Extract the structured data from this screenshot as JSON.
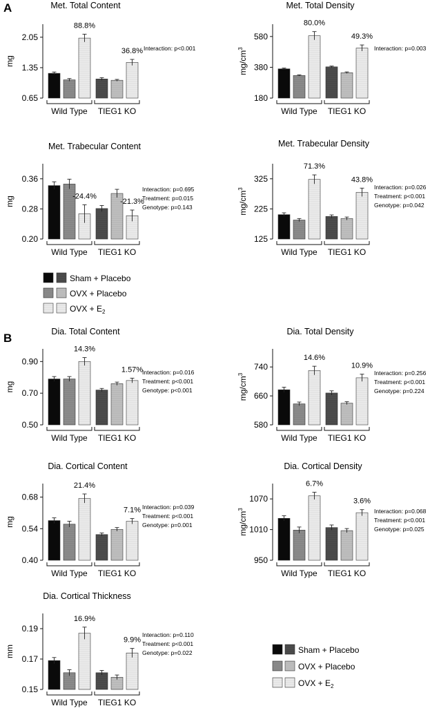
{
  "panel_labels": [
    "A",
    "B"
  ],
  "group_labels": [
    "Wild Type",
    "TIEG1 KO"
  ],
  "legend": {
    "sham": "Sham + Placebo",
    "ovx": "OVX + Placebo",
    "e2_main": "OVX + E",
    "e2_sub": "2"
  },
  "colors": {
    "wt": [
      "#0a0a0a",
      "#8c8c8c",
      "#e8e8e8"
    ],
    "ko": [
      "#4d4d4d",
      "#bdbdbd",
      "#e3e3e3"
    ]
  },
  "chart_data": [
    {
      "type": "bar",
      "title": "Met. Total Content",
      "ylabel": "mg",
      "ylabel_sup": "",
      "ylim": [
        0.65,
        2.35
      ],
      "yticks": [
        "0.65",
        "1.35",
        "2.05"
      ],
      "groups": [
        "Wild Type",
        "TIEG1 KO"
      ],
      "values": [
        [
          1.22,
          1.07,
          2.03
        ],
        [
          1.09,
          1.06,
          1.47
        ]
      ],
      "errors": [
        [
          0.03,
          0.03,
          0.09
        ],
        [
          0.03,
          0.02,
          0.07
        ]
      ],
      "pct_wt": "88.8%",
      "pct_ko": "36.8%",
      "stats": [
        "Interaction: p<0.001"
      ]
    },
    {
      "type": "bar",
      "title": "Met. Total Density",
      "ylabel": "mg/cm",
      "ylabel_sup": "3",
      "ylim": [
        180,
        660
      ],
      "yticks": [
        "180",
        "380",
        "580"
      ],
      "groups": [
        "Wild Type",
        "TIEG1 KO"
      ],
      "values": [
        [
          370,
          327,
          585
        ],
        [
          383,
          345,
          505
        ]
      ],
      "errors": [
        [
          5,
          4,
          27
        ],
        [
          5,
          5,
          20
        ]
      ],
      "pct_wt": "80.0%",
      "pct_ko": "49.3%",
      "stats": [
        "Interaction: p=0.003"
      ]
    },
    {
      "type": "bar",
      "title": "Met. Trabecular Content",
      "ylabel": "mg",
      "ylabel_sup": "",
      "ylim": [
        0.2,
        0.4
      ],
      "yticks": [
        "0.20",
        "0.28",
        "0.36"
      ],
      "groups": [
        "Wild Type",
        "TIEG1 KO"
      ],
      "values": [
        [
          0.342,
          0.346,
          0.267
        ],
        [
          0.281,
          0.321,
          0.262
        ]
      ],
      "errors": [
        [
          0.01,
          0.013,
          0.024
        ],
        [
          0.008,
          0.011,
          0.015
        ]
      ],
      "pct_wt": "-24.4%",
      "pct_ko": "-21.3%",
      "stats": [
        "Interaction: p=0.695",
        "Treatment: p=0.015",
        "Genotype: p=0.143"
      ]
    },
    {
      "type": "bar",
      "title": "Met. Trabecular Density",
      "ylabel": "mg/cm",
      "ylabel_sup": "3",
      "ylim": [
        125,
        375
      ],
      "yticks": [
        "125",
        "225",
        "325"
      ],
      "groups": [
        "Wild Type",
        "TIEG1 KO"
      ],
      "values": [
        [
          206,
          188,
          323
        ],
        [
          200,
          193,
          280
        ]
      ],
      "errors": [
        [
          6,
          5,
          15
        ],
        [
          5,
          5,
          14
        ]
      ],
      "pct_wt": "71.3%",
      "pct_ko": "43.8%",
      "stats": [
        "Interaction: p=0.026",
        "Treatment: p<0.001",
        "Genotype: p=0.042"
      ]
    },
    {
      "type": "bar",
      "title": "Dia. Total Content",
      "ylabel": "mg",
      "ylabel_sup": "",
      "ylim": [
        0.5,
        0.98
      ],
      "yticks": [
        "0.50",
        "0.70",
        "0.90"
      ],
      "groups": [
        "Wild Type",
        "TIEG1 KO"
      ],
      "values": [
        [
          0.79,
          0.79,
          0.9
        ],
        [
          0.72,
          0.76,
          0.78
        ]
      ],
      "errors": [
        [
          0.015,
          0.015,
          0.025
        ],
        [
          0.01,
          0.01,
          0.015
        ]
      ],
      "pct_wt": "14.3%",
      "pct_ko": "1.57%",
      "stats": [
        "Interaction: p=0.016",
        "Treatment: p<0.001",
        "Genotype: p<0.001"
      ]
    },
    {
      "type": "bar",
      "title": "Dia. Total Density",
      "ylabel": "mg/cm",
      "ylabel_sup": "3",
      "ylim": [
        580,
        790
      ],
      "yticks": [
        "580",
        "660",
        "740"
      ],
      "groups": [
        "Wild Type",
        "TIEG1 KO"
      ],
      "values": [
        [
          677,
          638,
          730
        ],
        [
          668,
          640,
          710
        ]
      ],
      "errors": [
        [
          7,
          5,
          12
        ],
        [
          6,
          4,
          10
        ]
      ],
      "pct_wt": "14.6%",
      "pct_ko": "10.9%",
      "stats": [
        "Interaction: p=0.256",
        "Treatment: p<0.001",
        "Genotype: p=0.224"
      ]
    },
    {
      "type": "bar",
      "title": "Dia. Cortical Content",
      "ylabel": "mg",
      "ylabel_sup": "",
      "ylim": [
        0.4,
        0.74
      ],
      "yticks": [
        "0.40",
        "0.54",
        "0.68"
      ],
      "groups": [
        "Wild Type",
        "TIEG1 KO"
      ],
      "values": [
        [
          0.576,
          0.56,
          0.674
        ],
        [
          0.514,
          0.537,
          0.573
        ]
      ],
      "errors": [
        [
          0.012,
          0.013,
          0.02
        ],
        [
          0.007,
          0.008,
          0.012
        ]
      ],
      "pct_wt": "21.4%",
      "pct_ko": "7.1%",
      "stats": [
        "Interaction: p=0.039",
        "Treatment: p<0.001",
        "Genotype: p=0.001"
      ]
    },
    {
      "type": "bar",
      "title": "Dia. Cortical Density",
      "ylabel": "mg/cm",
      "ylabel_sup": "3",
      "ylim": [
        950,
        1100
      ],
      "yticks": [
        "950",
        "1010",
        "1070"
      ],
      "groups": [
        "Wild Type",
        "TIEG1 KO"
      ],
      "values": [
        [
          1032,
          1009,
          1076
        ],
        [
          1014,
          1008,
          1043
        ]
      ],
      "errors": [
        [
          5,
          6,
          7
        ],
        [
          5,
          4,
          6
        ]
      ],
      "pct_wt": "6.7%",
      "pct_ko": "3.6%",
      "stats": [
        "Interaction: p=0.068",
        "Treatment: p<0.001",
        "Genotype: p=0.025"
      ]
    },
    {
      "type": "bar",
      "title": "Dia. Cortical Thickness",
      "ylabel": "mm",
      "ylabel_sup": "",
      "ylim": [
        0.15,
        0.2
      ],
      "yticks": [
        "0.15",
        "0.17",
        "0.19"
      ],
      "groups": [
        "Wild Type",
        "TIEG1 KO"
      ],
      "values": [
        [
          0.169,
          0.161,
          0.187
        ],
        [
          0.161,
          0.158,
          0.174
        ]
      ],
      "errors": [
        [
          0.002,
          0.002,
          0.004
        ],
        [
          0.0015,
          0.0015,
          0.003
        ]
      ],
      "pct_wt": "16.9%",
      "pct_ko": "9.9%",
      "stats": [
        "Interaction: p=0.110",
        "Treatment: p<0.001",
        "Genotype: p=0.022"
      ]
    }
  ]
}
